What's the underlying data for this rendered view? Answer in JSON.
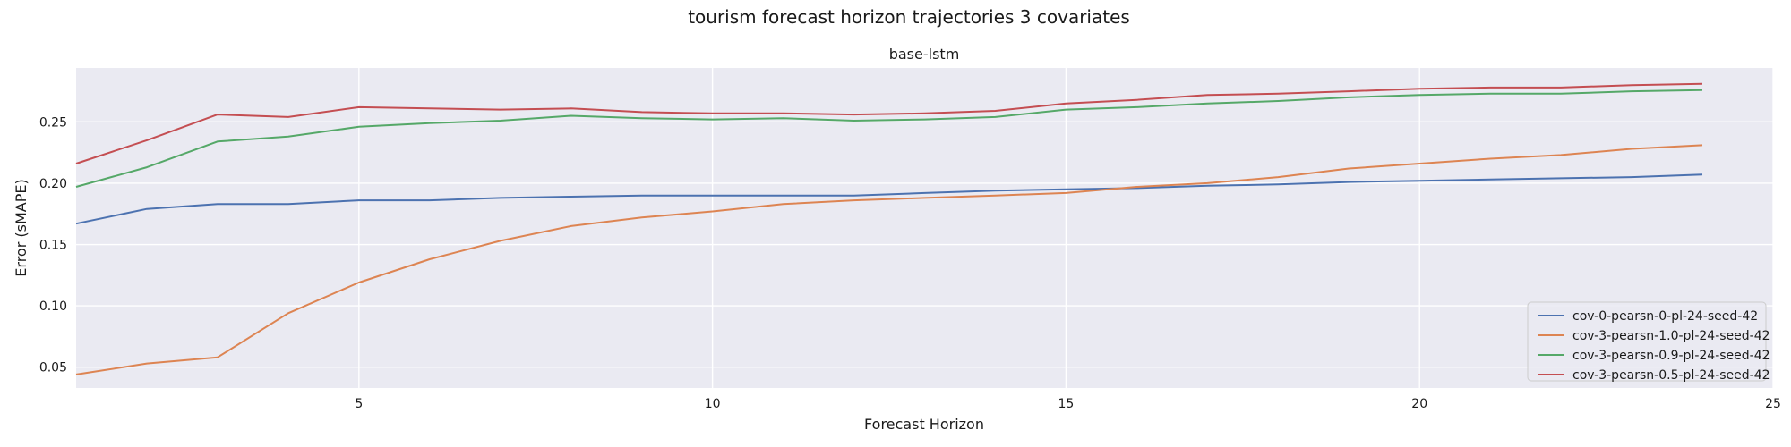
{
  "chart_data": {
    "type": "line",
    "suptitle": "tourism forecast horizon trajectories 3 covariates",
    "title": "base-lstm",
    "xlabel": "Forecast Horizon",
    "ylabel": "Error (sMAPE)",
    "xlim": [
      1,
      25
    ],
    "ylim": [
      0.033,
      0.294
    ],
    "xticks": [
      5,
      10,
      15,
      20,
      25
    ],
    "yticks": [
      0.05,
      0.1,
      0.15,
      0.2,
      0.25
    ],
    "xtick_labels": [
      "5",
      "10",
      "15",
      "20",
      "25"
    ],
    "ytick_labels": [
      "0.05",
      "0.10",
      "0.15",
      "0.20",
      "0.25"
    ],
    "grid": true,
    "legend_position": "bottom-right",
    "x": [
      1,
      2,
      3,
      4,
      5,
      6,
      7,
      8,
      9,
      10,
      11,
      12,
      13,
      14,
      15,
      16,
      17,
      18,
      19,
      20,
      21,
      22,
      23,
      24
    ],
    "series": [
      {
        "name": "cov-0-pearsn-0-pl-24-seed-42",
        "color": "#4c72b0",
        "values": [
          0.167,
          0.179,
          0.183,
          0.183,
          0.186,
          0.186,
          0.188,
          0.189,
          0.19,
          0.19,
          0.19,
          0.19,
          0.192,
          0.194,
          0.195,
          0.196,
          0.198,
          0.199,
          0.201,
          0.202,
          0.203,
          0.204,
          0.205,
          0.207
        ]
      },
      {
        "name": "cov-3-pearsn-1.0-pl-24-seed-42",
        "color": "#dd8452",
        "values": [
          0.044,
          0.053,
          0.058,
          0.094,
          0.119,
          0.138,
          0.153,
          0.165,
          0.172,
          0.177,
          0.183,
          0.186,
          0.188,
          0.19,
          0.192,
          0.197,
          0.2,
          0.205,
          0.212,
          0.216,
          0.22,
          0.223,
          0.228,
          0.231
        ]
      },
      {
        "name": "cov-3-pearsn-0.9-pl-24-seed-42",
        "color": "#55a868",
        "values": [
          0.197,
          0.213,
          0.234,
          0.238,
          0.246,
          0.249,
          0.251,
          0.255,
          0.253,
          0.252,
          0.253,
          0.251,
          0.252,
          0.254,
          0.26,
          0.262,
          0.265,
          0.267,
          0.27,
          0.272,
          0.273,
          0.273,
          0.275,
          0.276
        ]
      },
      {
        "name": "cov-3-pearsn-0.5-pl-24-seed-42",
        "color": "#c44e52",
        "values": [
          0.216,
          0.235,
          0.256,
          0.254,
          0.262,
          0.261,
          0.26,
          0.261,
          0.258,
          0.257,
          0.257,
          0.256,
          0.257,
          0.259,
          0.265,
          0.268,
          0.272,
          0.273,
          0.275,
          0.277,
          0.278,
          0.278,
          0.28,
          0.281
        ]
      }
    ]
  },
  "colors": {
    "axes_background": "#eaeaf2",
    "grid": "#ffffff",
    "legend_background": "#eaeaf2",
    "legend_border": "#cccccc"
  }
}
